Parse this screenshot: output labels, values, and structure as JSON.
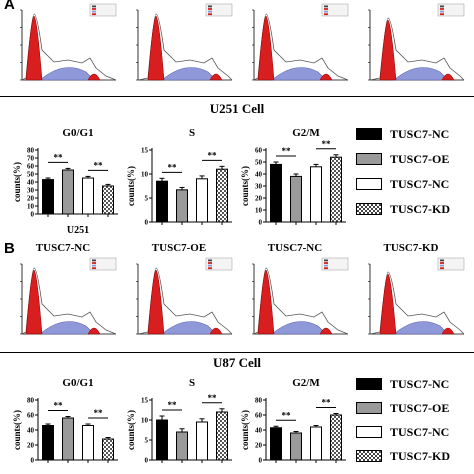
{
  "panel_a": {
    "letter": "A",
    "cell_caption": "U251 Cell",
    "hist_labels": [
      "",
      "",
      "",
      ""
    ]
  },
  "panel_b": {
    "letter": "B",
    "cell_caption": "U87 Cell",
    "hist_labels": [
      "TUSC7-NC",
      "TUSC7-OE",
      "TUSC7-NC",
      "TUSC7-KD"
    ]
  },
  "legend": [
    "TUSC7-NC",
    "TUSC7-OE",
    "TUSC7-NC",
    "TUSC7-KD"
  ],
  "colors": {
    "black": "#000000",
    "gray": "#9a9a9a",
    "white": "#ffffff",
    "checker": "#555555",
    "red": "#d81e1e",
    "blue": "#8f98d8"
  },
  "chart_data": [
    {
      "type": "bar",
      "title": "G0/G1",
      "ylabel": "counts(%)",
      "xlabel": "U251",
      "categories": [
        "TUSC7-NC",
        "TUSC7-OE",
        "TUSC7-NC",
        "TUSC7-KD"
      ],
      "values": [
        43,
        55,
        45,
        35
      ],
      "errors": [
        2,
        2,
        2,
        2
      ],
      "ylim": [
        0,
        80
      ],
      "yticks": [
        0,
        10,
        20,
        30,
        40,
        50,
        60,
        70,
        80
      ],
      "significance": [
        {
          "pair": [
            0,
            1
          ],
          "label": "**"
        },
        {
          "pair": [
            2,
            3
          ],
          "label": "**"
        }
      ]
    },
    {
      "type": "bar",
      "title": "S",
      "ylabel": "counts(%)",
      "xlabel": "",
      "categories": [
        "TUSC7-NC",
        "TUSC7-OE",
        "TUSC7-NC",
        "TUSC7-KD"
      ],
      "values": [
        8.5,
        6.7,
        9.0,
        11.0
      ],
      "errors": [
        0.6,
        0.5,
        0.6,
        0.6
      ],
      "ylim": [
        0,
        15
      ],
      "yticks": [
        0,
        5,
        10,
        15
      ],
      "significance": [
        {
          "pair": [
            0,
            1
          ],
          "label": "**"
        },
        {
          "pair": [
            2,
            3
          ],
          "label": "**"
        }
      ]
    },
    {
      "type": "bar",
      "title": "G2/M",
      "ylabel": "counts(%)",
      "xlabel": "",
      "categories": [
        "TUSC7-NC",
        "TUSC7-OE",
        "TUSC7-NC",
        "TUSC7-KD"
      ],
      "values": [
        48,
        38,
        46,
        54
      ],
      "errors": [
        2,
        2,
        2,
        2
      ],
      "ylim": [
        0,
        60
      ],
      "yticks": [
        0,
        10,
        20,
        30,
        40,
        50,
        60
      ],
      "significance": [
        {
          "pair": [
            0,
            1
          ],
          "label": "**"
        },
        {
          "pair": [
            2,
            3
          ],
          "label": "**"
        }
      ]
    },
    {
      "type": "bar",
      "title": "G0/G1",
      "ylabel": "counts(%)",
      "xlabel": "",
      "categories": [
        "TUSC7-NC",
        "TUSC7-OE",
        "TUSC7-NC",
        "TUSC7-KD"
      ],
      "values": [
        46,
        56,
        46,
        28
      ],
      "errors": [
        2,
        2,
        2,
        2
      ],
      "ylim": [
        0,
        80
      ],
      "yticks": [
        0,
        20,
        40,
        60,
        80
      ],
      "significance": [
        {
          "pair": [
            0,
            1
          ],
          "label": "**"
        },
        {
          "pair": [
            2,
            3
          ],
          "label": "**"
        }
      ]
    },
    {
      "type": "bar",
      "title": "S",
      "ylabel": "counts(%)",
      "xlabel": "",
      "categories": [
        "TUSC7-NC",
        "TUSC7-OE",
        "TUSC7-NC",
        "TUSC7-KD"
      ],
      "values": [
        10.0,
        7.0,
        9.5,
        12.0
      ],
      "errors": [
        1.0,
        0.8,
        0.8,
        0.8
      ],
      "ylim": [
        0,
        15
      ],
      "yticks": [
        0,
        5,
        10,
        15
      ],
      "significance": [
        {
          "pair": [
            0,
            1
          ],
          "label": "**"
        },
        {
          "pair": [
            2,
            3
          ],
          "label": "**"
        }
      ]
    },
    {
      "type": "bar",
      "title": "G2/M",
      "ylabel": "counts(%)",
      "xlabel": "",
      "categories": [
        "TUSC7-NC",
        "TUSC7-OE",
        "TUSC7-NC",
        "TUSC7-KD"
      ],
      "values": [
        43,
        36,
        44,
        60
      ],
      "errors": [
        2,
        2,
        2,
        2
      ],
      "ylim": [
        0,
        80
      ],
      "yticks": [
        0,
        20,
        40,
        60,
        80
      ],
      "significance": [
        {
          "pair": [
            0,
            1
          ],
          "label": "**"
        },
        {
          "pair": [
            2,
            3
          ],
          "label": "**"
        }
      ]
    }
  ]
}
